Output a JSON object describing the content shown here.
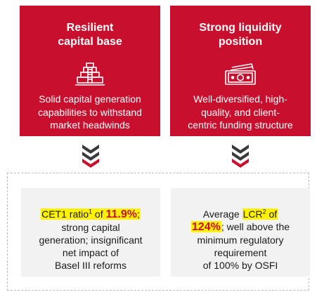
{
  "cards": [
    {
      "title_line1": "Resilient",
      "title_line2": "capital base",
      "icon": "pyramid-icon",
      "body_line1": "Solid capital generation",
      "body_line2": "capabilities to withstand",
      "body_line3": "market headwinds"
    },
    {
      "title_line1": "Strong liquidity",
      "title_line2": "position",
      "icon": "banknote-icon",
      "body_line1": "Well-diversified, high-",
      "body_line2": "quality, and client-",
      "body_line3": "centric funding structure"
    }
  ],
  "details": [
    {
      "pre": "CET1 ratio",
      "sup": "1",
      "mid": " of ",
      "metric": "11.9%",
      "post": ";",
      "line2": "strong capital",
      "line3": "generation; insignificant",
      "line4": "net impact of",
      "line5": "Basel III reforms"
    },
    {
      "pre": "Average ",
      "highlight": "LCR",
      "sup": "2",
      "mid": " of",
      "metric": "124%",
      "post": "; well above the",
      "line3": "minimum regulatory",
      "line4": "requirement",
      "line5": "of 100% by OSFI"
    }
  ],
  "colors": {
    "accent": "#c8102e",
    "highlight": "#fff200",
    "chevron_dark": "#3a3a3a",
    "panel_bg": "#f2f2f2"
  }
}
